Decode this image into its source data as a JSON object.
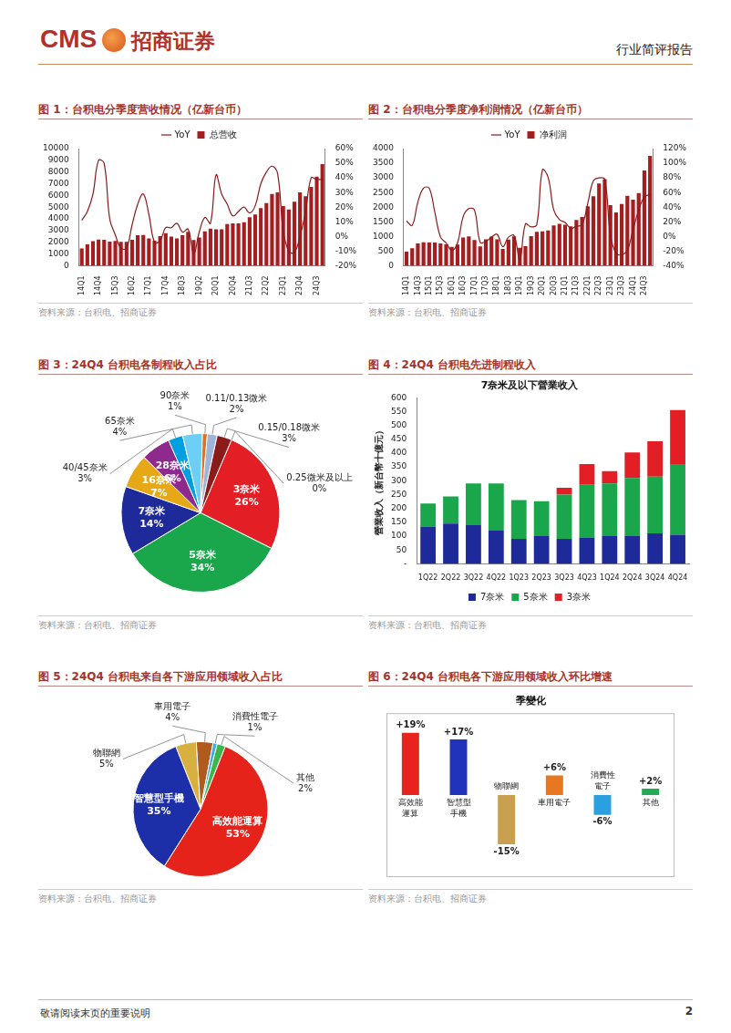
{
  "header": {
    "logo_text": "CMS",
    "company": "招商证券",
    "report_type": "行业简评报告"
  },
  "footer": {
    "notice": "敬请阅读末页的重要说明",
    "page": 2
  },
  "chart_data": [
    {
      "type": "bar",
      "title": "图 1：台积电分季度营收情况（亿新台币）",
      "source": "资料来源：台积电、招商证券",
      "categories": [
        "14Q1",
        null,
        null,
        "14Q4",
        null,
        null,
        "15Q3",
        null,
        null,
        "16Q2",
        null,
        null,
        "17Q1",
        null,
        null,
        "17Q4",
        null,
        null,
        "18Q3",
        null,
        null,
        "19Q2",
        null,
        null,
        "20Q1",
        null,
        null,
        "20Q4",
        null,
        null,
        "21Q3",
        null,
        null,
        "22Q2",
        null,
        null,
        "23Q1",
        null,
        null,
        "23Q4",
        null,
        null,
        "24Q3",
        null
      ],
      "series": [
        {
          "name": "总营收",
          "type": "bar",
          "color": "#a31f1f",
          "values": [
            1480,
            1830,
            2097,
            2225,
            2220,
            2056,
            2125,
            2036,
            2035,
            2219,
            2602,
            2622,
            2339,
            2138,
            2521,
            2771,
            2481,
            2331,
            2603,
            2898,
            2187,
            2410,
            2931,
            3172,
            3106,
            3107,
            3564,
            3616,
            3624,
            3721,
            4147,
            4382,
            4911,
            5341,
            6131,
            6255,
            5086,
            4808,
            5467,
            6255,
            5926,
            6735,
            7597,
            8685
          ]
        },
        {
          "name": "YoY",
          "type": "line",
          "color": "#8b1a1a",
          "axis": "y2",
          "values": [
            11,
            17,
            29,
            52,
            50,
            12,
            1,
            -8,
            -8,
            8,
            22,
            29,
            15,
            -4,
            -3,
            6,
            6,
            9,
            3,
            5,
            -12,
            3,
            13,
            9,
            42,
            29,
            22,
            14,
            17,
            20,
            16,
            21,
            36,
            44,
            48,
            43,
            4,
            -10,
            -11,
            0,
            17,
            40,
            39,
            39
          ]
        }
      ],
      "ylim": [
        0,
        10000
      ],
      "yticks": [
        0,
        1000,
        2000,
        3000,
        4000,
        5000,
        6000,
        7000,
        8000,
        9000,
        10000
      ],
      "y2lim": [
        -20,
        60
      ],
      "y2ticks": [
        {
          "value": -20,
          "label": "-20%"
        },
        {
          "value": -10,
          "label": "-10%"
        },
        {
          "value": 0,
          "label": "0%"
        },
        {
          "value": 10,
          "label": "10%"
        },
        {
          "value": 20,
          "label": "20%"
        },
        {
          "value": 30,
          "label": "30%"
        },
        {
          "value": 40,
          "label": "40%"
        },
        {
          "value": 50,
          "label": "50%"
        },
        {
          "value": 60,
          "label": "60%"
        }
      ],
      "legend": "top",
      "grid": false
    },
    {
      "type": "bar",
      "title": "图 2：台积电分季度净利润情况（亿新台币）",
      "source": "资料来源：台积电、招商证券",
      "categories": [
        "14Q1",
        null,
        "14Q3",
        null,
        "15Q1",
        null,
        "15Q3",
        null,
        "16Q1",
        null,
        "16Q3",
        null,
        "17Q1",
        null,
        "17Q3",
        null,
        "18Q1",
        null,
        "18Q3",
        null,
        "19Q1",
        null,
        "19Q3",
        null,
        "20Q1",
        null,
        "20Q3",
        null,
        "21Q1",
        null,
        "21Q3",
        null,
        "22Q1",
        null,
        "22Q3",
        null,
        "23Q1",
        null,
        "23Q3",
        null,
        "24Q1",
        null,
        "24Q3",
        null
      ],
      "series": [
        {
          "name": "净利润",
          "type": "bar",
          "color": "#a31f1f",
          "values": [
            479,
            597,
            764,
            799,
            796,
            796,
            758,
            727,
            645,
            722,
            963,
            1000,
            876,
            663,
            899,
            993,
            898,
            573,
            892,
            1000,
            613,
            668,
            1011,
            1161,
            1171,
            1208,
            1373,
            1427,
            1397,
            1343,
            1563,
            1662,
            2027,
            2370,
            2808,
            2959,
            2069,
            1818,
            2110,
            2387,
            2255,
            2479,
            3252,
            3747
          ]
        },
        {
          "name": "YoY",
          "type": "line",
          "color": "#8b1a1a",
          "axis": "y2",
          "values": [
            21,
            15,
            47,
            66,
            66,
            33,
            -1,
            -9,
            -19,
            -9,
            27,
            38,
            36,
            -8,
            -7,
            -1,
            3,
            -14,
            -1,
            1,
            -32,
            17,
            13,
            16,
            91,
            81,
            36,
            23,
            19,
            11,
            14,
            16,
            45,
            76,
            80,
            78,
            2,
            -23,
            -25,
            -19,
            9,
            36,
            54,
            57
          ]
        }
      ],
      "ylim": [
        0,
        4000
      ],
      "yticks": [
        0,
        500,
        1000,
        1500,
        2000,
        2500,
        3000,
        3500,
        4000
      ],
      "y2lim": [
        -40,
        120
      ],
      "y2ticks": [
        {
          "value": -40,
          "label": "-40%"
        },
        {
          "value": -20,
          "label": "-20%"
        },
        {
          "value": 0,
          "label": "0%"
        },
        {
          "value": 20,
          "label": "20%"
        },
        {
          "value": 40,
          "label": "40%"
        },
        {
          "value": 60,
          "label": "60%"
        },
        {
          "value": 80,
          "label": "80%"
        },
        {
          "value": 100,
          "label": "100%"
        },
        {
          "value": 120,
          "label": "120%"
        }
      ],
      "legend": "top",
      "grid": false
    },
    {
      "type": "pie",
      "title": "图 3：24Q4 台积电各制程收入占比",
      "source": "资料来源：台积电、招商证券",
      "categories": [
        "3奈米",
        "5奈米",
        "7奈米",
        "16奈米",
        "28奈米",
        "40/45奈米",
        "65奈米",
        "90奈米",
        "0.11/0.13微米",
        "0.15/0.18微米",
        "0.25微米及以上"
      ],
      "values": [
        26,
        34,
        14,
        7,
        6,
        3,
        4,
        1,
        2,
        3,
        0
      ],
      "value_labels": [
        "26%",
        "34%",
        "14%",
        "7%",
        "6%",
        "3%",
        "4%",
        "1%",
        "2%",
        "3%",
        "0%"
      ],
      "colors": [
        "#e31e24",
        "#1aa64a",
        "#1f2a9a",
        "#e6a817",
        "#8e2a8e",
        "#00a0e0",
        "#6dcff6",
        "#e07020",
        "#9fb4d8",
        "#8b1a1a",
        "#555555"
      ],
      "data_labels": true
    },
    {
      "type": "bar",
      "title": "图 4：24Q4 台积电先进制程收入",
      "source": "资料来源：台积电、招商证券",
      "subtitle": "7奈米及以下營業收入",
      "ylabel": "營業收入（新台幣十億元）",
      "categories": [
        "1Q22",
        "2Q22",
        "3Q22",
        "4Q22",
        "1Q23",
        "2Q23",
        "3Q23",
        "4Q23",
        "1Q24",
        "2Q24",
        "3Q24",
        "4Q24"
      ],
      "series": [
        {
          "name": "7奈米",
          "color": "#1f2a9a",
          "values": [
            135,
            145,
            140,
            120,
            90,
            100,
            90,
            95,
            100,
            100,
            110,
            105
          ]
        },
        {
          "name": "5奈米",
          "color": "#1aa64a",
          "values": [
            83,
            98,
            150,
            170,
            140,
            126,
            160,
            190,
            190,
            210,
            205,
            255
          ]
        },
        {
          "name": "3奈米",
          "color": "#e31e24",
          "values": [
            null,
            null,
            null,
            null,
            null,
            null,
            25,
            75,
            45,
            92,
            128,
            195
          ]
        }
      ],
      "stacked": true,
      "ylim": [
        0,
        600
      ],
      "yticks": [
        {
          "value": 0,
          "label": "-"
        },
        50,
        100,
        150,
        200,
        250,
        300,
        350,
        400,
        450,
        500,
        550,
        600
      ],
      "legend": "bottom",
      "grid": false
    },
    {
      "type": "pie",
      "title": "图 5：24Q4 台积电来自各下游应用领域收入占比",
      "source": "资料来源：台积电、招商证券",
      "categories": [
        "物聯網",
        "車用電子",
        "消費性電子",
        "其他",
        "高效能運算",
        "智慧型手機"
      ],
      "values": [
        5,
        4,
        1,
        2,
        53,
        35
      ],
      "value_labels": [
        "5%",
        "4%",
        "1%",
        "2%",
        "53%",
        "35%"
      ],
      "colors": [
        "#d8b040",
        "#b05a1e",
        "#3aaee0",
        "#3cb54a",
        "#e5231b",
        "#1c2fa8"
      ],
      "data_labels": true
    },
    {
      "type": "bar",
      "title": "图 6：24Q4 台积电各下游应用领域收入环比增速",
      "source": "资料来源：台积电、招商证券",
      "subtitle": "季變化",
      "categories": [
        "高效能運算",
        "智慧型手機",
        "物聯網",
        "車用電子",
        "消費性電子",
        "其他"
      ],
      "values": [
        19,
        17,
        -15,
        6,
        -6,
        2
      ],
      "value_labels": [
        "+19%",
        "+17%",
        "-15%",
        "+6%",
        "-6%",
        "+2%"
      ],
      "colors": [
        "#e8221c",
        "#2233bb",
        "#c8a050",
        "#e87722",
        "#2aa0e0",
        "#22aa55"
      ],
      "ylim": [
        -25,
        25
      ],
      "tick_labels": false,
      "data_labels": true,
      "grid": false
    }
  ]
}
